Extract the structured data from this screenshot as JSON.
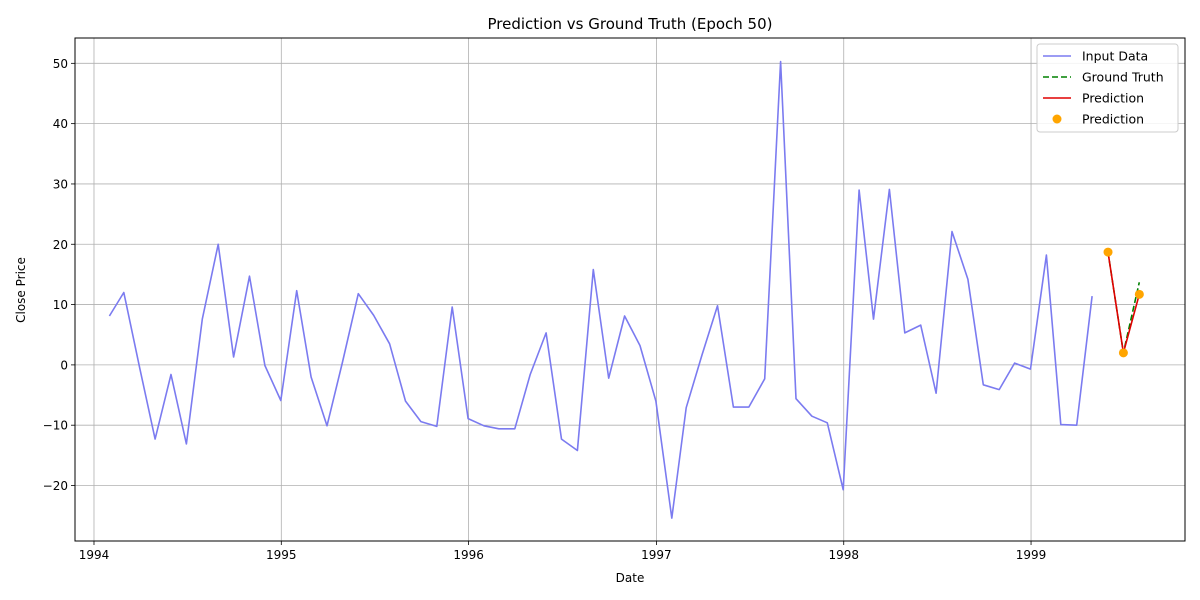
{
  "chart_data": {
    "type": "line",
    "title": "Prediction vs Ground Truth (Epoch 50)",
    "xlabel": "Date",
    "ylabel": "Close Price",
    "x_ticks": [
      "1994",
      "1995",
      "1996",
      "1997",
      "1998",
      "1999"
    ],
    "y_ticks": [
      -20,
      -10,
      0,
      10,
      20,
      30,
      40,
      50
    ],
    "xlim": [
      "1993-11-25",
      "1999-10-28"
    ],
    "ylim": [
      -29.2,
      54.2
    ],
    "grid": true,
    "legend_position": "top-right",
    "colors": {
      "input": "#7b7bf0",
      "ground_truth": "#008000",
      "prediction": "#e00000",
      "prediction_points": "#ffa500"
    },
    "series": [
      {
        "name": "Input Data",
        "style": "line",
        "points": [
          [
            "1994-01-31",
            8.1
          ],
          [
            "1994-02-28",
            12.0
          ],
          [
            "1994-03-31",
            -0.5
          ],
          [
            "1994-04-30",
            -12.3
          ],
          [
            "1994-05-31",
            -1.6
          ],
          [
            "1994-06-30",
            -13.1
          ],
          [
            "1994-07-31",
            7.6
          ],
          [
            "1994-08-31",
            20.0
          ],
          [
            "1994-09-30",
            1.3
          ],
          [
            "1994-10-31",
            14.7
          ],
          [
            "1994-11-30",
            -0.1
          ],
          [
            "1994-12-31",
            -5.9
          ],
          [
            "1995-01-31",
            12.3
          ],
          [
            "1995-02-28",
            -2.0
          ],
          [
            "1995-03-31",
            -10.1
          ],
          [
            "1995-04-30",
            0.4
          ],
          [
            "1995-05-31",
            11.8
          ],
          [
            "1995-06-30",
            8.2
          ],
          [
            "1995-07-31",
            3.5
          ],
          [
            "1995-08-31",
            -6.0
          ],
          [
            "1995-09-30",
            -9.4
          ],
          [
            "1995-10-31",
            -10.2
          ],
          [
            "1995-11-30",
            9.6
          ],
          [
            "1995-12-31",
            -8.9
          ],
          [
            "1996-01-31",
            -10.1
          ],
          [
            "1996-02-29",
            -10.6
          ],
          [
            "1996-03-31",
            -10.6
          ],
          [
            "1996-04-30",
            -1.6
          ],
          [
            "1996-05-31",
            5.3
          ],
          [
            "1996-06-30",
            -12.3
          ],
          [
            "1996-07-31",
            -14.2
          ],
          [
            "1996-08-31",
            15.8
          ],
          [
            "1996-09-30",
            -2.2
          ],
          [
            "1996-10-31",
            8.1
          ],
          [
            "1996-11-30",
            3.2
          ],
          [
            "1996-12-31",
            -6.0
          ],
          [
            "1997-01-31",
            -25.4
          ],
          [
            "1997-02-28",
            -7.1
          ],
          [
            "1997-03-31",
            1.7
          ],
          [
            "1997-04-30",
            9.8
          ],
          [
            "1997-05-31",
            -7.0
          ],
          [
            "1997-06-30",
            -7.0
          ],
          [
            "1997-07-31",
            -2.3
          ],
          [
            "1997-08-31",
            50.3
          ],
          [
            "1997-09-30",
            -5.6
          ],
          [
            "1997-10-31",
            -8.5
          ],
          [
            "1997-11-30",
            -9.6
          ],
          [
            "1997-12-31",
            -20.7
          ],
          [
            "1998-01-31",
            29.0
          ],
          [
            "1998-02-28",
            7.6
          ],
          [
            "1998-03-31",
            29.1
          ],
          [
            "1998-04-30",
            5.3
          ],
          [
            "1998-05-31",
            6.6
          ],
          [
            "1998-06-30",
            -4.7
          ],
          [
            "1998-07-31",
            22.1
          ],
          [
            "1998-08-31",
            14.2
          ],
          [
            "1998-09-30",
            -3.3
          ],
          [
            "1998-10-31",
            -4.1
          ],
          [
            "1998-11-30",
            0.3
          ],
          [
            "1998-12-31",
            -0.7
          ],
          [
            "1999-01-31",
            18.2
          ],
          [
            "1999-02-28",
            -9.9
          ],
          [
            "1999-03-31",
            -10.0
          ],
          [
            "1999-04-30",
            11.4
          ]
        ]
      },
      {
        "name": "Ground Truth",
        "style": "dashed",
        "points": [
          [
            "1999-05-31",
            18.7
          ],
          [
            "1999-06-30",
            2.0
          ],
          [
            "1999-07-31",
            13.7
          ]
        ]
      },
      {
        "name": "Prediction",
        "style": "line",
        "points": [
          [
            "1999-05-31",
            18.7
          ],
          [
            "1999-06-30",
            2.0
          ],
          [
            "1999-07-31",
            11.7
          ]
        ]
      },
      {
        "name": "Prediction",
        "style": "scatter",
        "points": [
          [
            "1999-05-31",
            18.7
          ],
          [
            "1999-06-30",
            2.0
          ],
          [
            "1999-07-31",
            11.7
          ]
        ]
      }
    ]
  }
}
